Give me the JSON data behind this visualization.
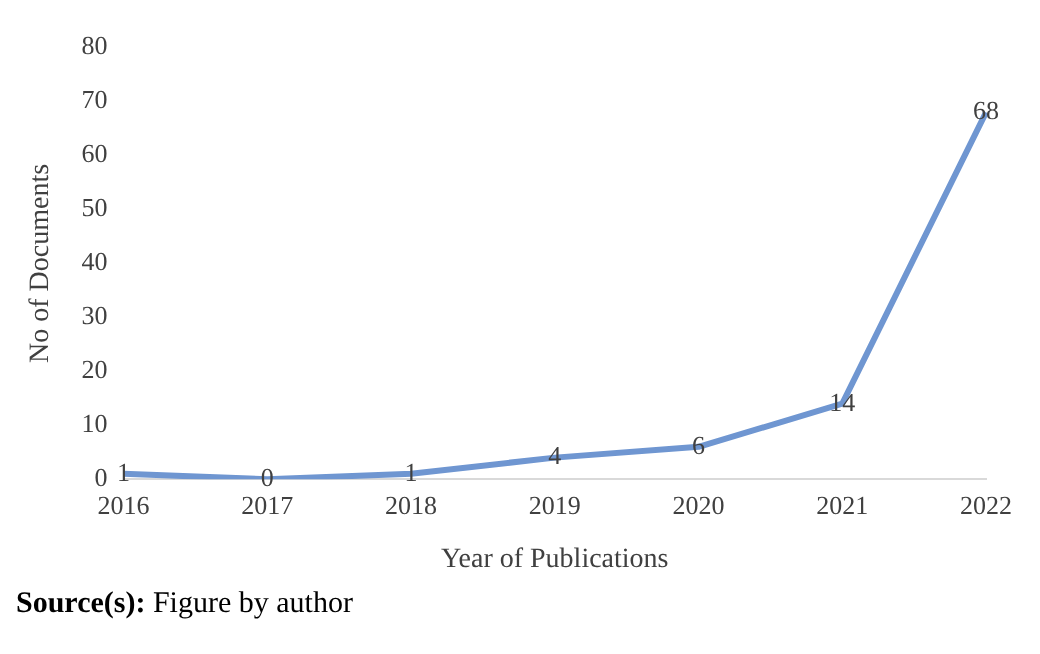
{
  "chart_data": {
    "type": "line",
    "categories": [
      "2016",
      "2017",
      "2018",
      "2019",
      "2020",
      "2021",
      "2022"
    ],
    "values": [
      1,
      0,
      1,
      4,
      6,
      14,
      68
    ],
    "color": "#6f96d1",
    "xlabel": "Year of Publications",
    "ylabel": "No of Documents",
    "ylim": [
      0,
      80
    ],
    "yticks": [
      0,
      10,
      20,
      30,
      40,
      50,
      60,
      70,
      80
    ],
    "data_labels": true,
    "marker": "none",
    "grid": false,
    "legend": false,
    "annotations": [
      "Source(s): Figure by author"
    ]
  }
}
